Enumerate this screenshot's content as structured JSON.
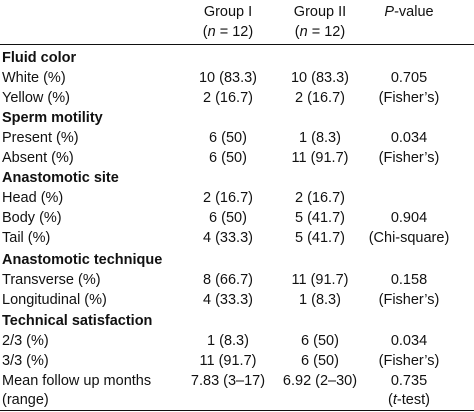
{
  "header": {
    "group1": "Group I",
    "group1_n_pre": "(",
    "group1_n_var": "n",
    "group1_n_post": " = 12)",
    "group2": "Group II",
    "group2_n_pre": "(",
    "group2_n_var": "n",
    "group2_n_post": " = 12)",
    "pvalue_var": "P",
    "pvalue_rest": "-value"
  },
  "sections": [
    {
      "title": "Fluid color",
      "rows": [
        {
          "label": "White (%)",
          "g1": "10 (83.3)",
          "g2": "10 (83.3)",
          "p": "0.705"
        },
        {
          "label": "Yellow (%)",
          "g1": "2 (16.7)",
          "g2": "2 (16.7)",
          "p": "(Fisher’s)"
        }
      ]
    },
    {
      "title": "Sperm motility",
      "rows": [
        {
          "label": "Present (%)",
          "g1": "6 (50)",
          "g2": "1 (8.3)",
          "p": "0.034"
        },
        {
          "label": "Absent (%)",
          "g1": "6 (50)",
          "g2": "11 (91.7)",
          "p": "(Fisher’s)"
        }
      ]
    },
    {
      "title": "Anastomotic site",
      "rows": [
        {
          "label": "Head (%)",
          "g1": "2 (16.7)",
          "g2": "2 (16.7)",
          "p": ""
        },
        {
          "label": "Body (%)",
          "g1": "6 (50)",
          "g2": "5 (41.7)",
          "p": "0.904"
        },
        {
          "label": "Tail (%)",
          "g1": "4 (33.3)",
          "g2": "5 (41.7)",
          "p": "(Chi-square)"
        }
      ]
    },
    {
      "title": "Anastomotic technique",
      "rows": [
        {
          "label": "Transverse (%)",
          "g1": "8 (66.7)",
          "g2": "11 (91.7)",
          "p": "0.158"
        },
        {
          "label": "Longitudinal (%)",
          "g1": "4 (33.3)",
          "g2": "1 (8.3)",
          "p": "(Fisher’s)"
        }
      ]
    },
    {
      "title": "Technical satisfaction",
      "rows": [
        {
          "label": "2/3 (%)",
          "g1": "1 (8.3)",
          "g2": "6 (50)",
          "p": "0.034"
        },
        {
          "label": "3/3 (%)",
          "g1": "11 (91.7)",
          "g2": "6 (50)",
          "p": "(Fisher’s)"
        }
      ]
    }
  ],
  "followup": {
    "label_line1": "Mean follow up months",
    "label_line2": "(range)",
    "g1": "7.83 (3–17)",
    "g2": "6.92 (2–30)",
    "p_line1": "0.735",
    "p_line2_pre": "(",
    "p_line2_var": "t",
    "p_line2_post": "-test)"
  }
}
